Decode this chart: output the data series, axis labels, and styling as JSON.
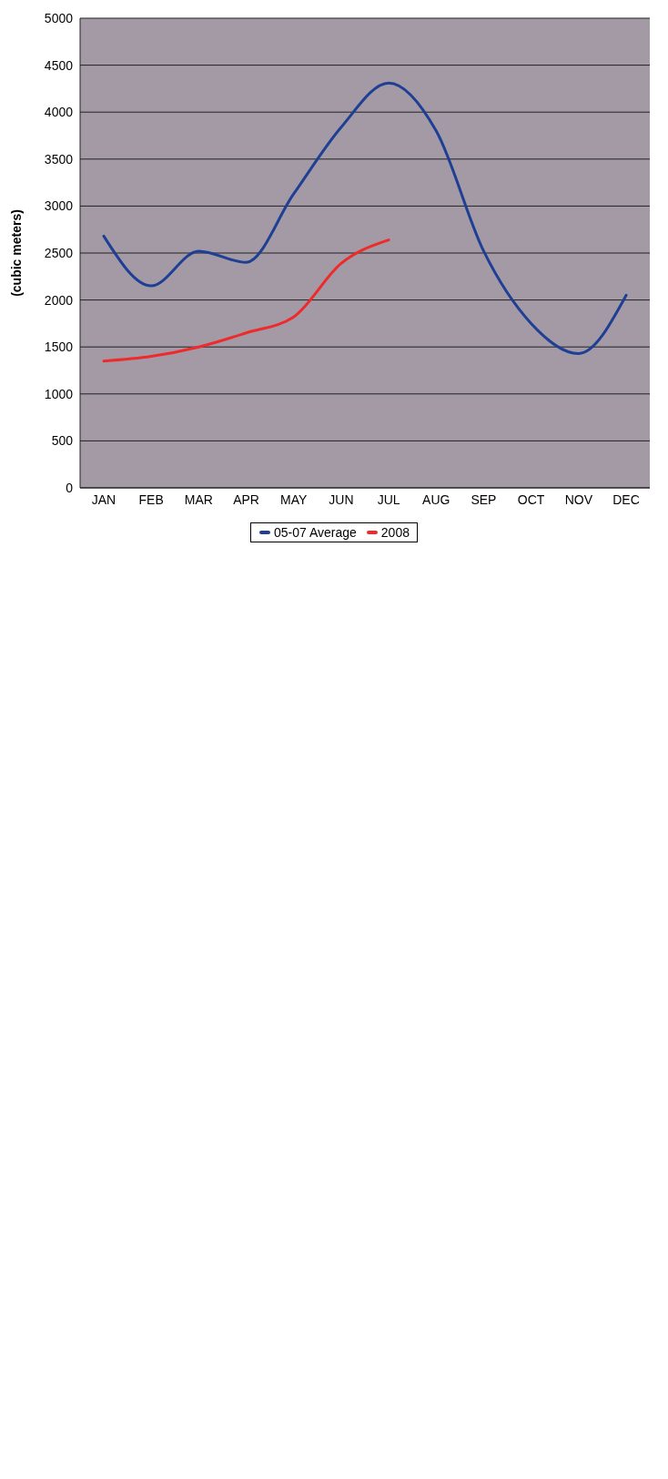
{
  "chart_data": {
    "type": "line",
    "ylabel": "(cubic meters)",
    "categories": [
      "JAN",
      "FEB",
      "MAR",
      "APR",
      "MAY",
      "JUN",
      "JUL",
      "AUG",
      "SEP",
      "OCT",
      "NOV",
      "DEC"
    ],
    "series": [
      {
        "name": "05-07 Average",
        "color": "#1f3f95",
        "values": [
          2680,
          2150,
          2520,
          2400,
          3130,
          3840,
          4310,
          3800,
          2520,
          1750,
          1430,
          2050
        ]
      },
      {
        "name": "2008",
        "color": "#ee2a2a",
        "values": [
          1350,
          1400,
          1500,
          1650,
          1820,
          2390,
          2640,
          null,
          null,
          null,
          null,
          null
        ]
      }
    ],
    "ylim": [
      0,
      5000
    ],
    "yticks": [
      0,
      500,
      1000,
      1500,
      2000,
      2500,
      3000,
      3500,
      4000,
      4500,
      5000
    ],
    "grid": "y",
    "legend": "bottom",
    "marker": "none",
    "line_style": "solid"
  }
}
